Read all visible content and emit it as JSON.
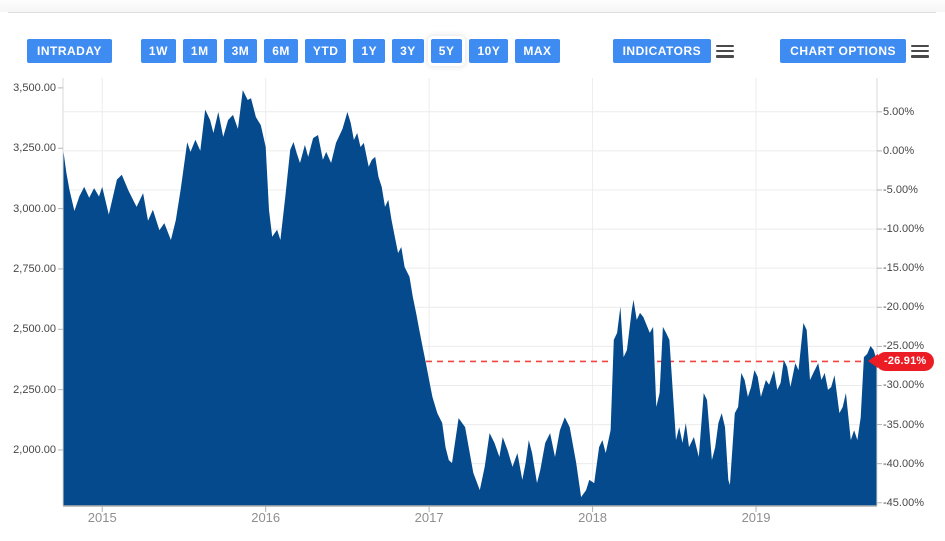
{
  "toolbar": {
    "intraday_label": "INTRADAY",
    "ranges": [
      {
        "label": "1W",
        "active": false
      },
      {
        "label": "1M",
        "active": false
      },
      {
        "label": "3M",
        "active": false
      },
      {
        "label": "6M",
        "active": false
      },
      {
        "label": "YTD",
        "active": false
      },
      {
        "label": "1Y",
        "active": false
      },
      {
        "label": "3Y",
        "active": false
      },
      {
        "label": "5Y",
        "active": true
      },
      {
        "label": "10Y",
        "active": false
      },
      {
        "label": "MAX",
        "active": false
      }
    ],
    "indicators_label": "INDICATORS",
    "chart_options_label": "CHART OPTIONS"
  },
  "colors": {
    "button_blue": "#3e8bf2",
    "area_fill": "#054a8c",
    "grid": "#ececec",
    "axis_line": "#d9d9d9",
    "bottom_axis": "#b0b0b0",
    "tick": "#b5b5b5",
    "label_dark": "#474747",
    "label_year": "#8f8f8f",
    "badge_red": "#ec1c24",
    "dashed_red": "#f2453f"
  },
  "chart_data": {
    "type": "area",
    "title": "",
    "xlabel": "",
    "ylabel": "",
    "grid": true,
    "legend": false,
    "x_axis": {
      "min": 2014.76,
      "max": 2019.74,
      "tick_values": [
        2015,
        2016,
        2017,
        2018,
        2019
      ],
      "labels": [
        "2015",
        "2016",
        "2017",
        "2018",
        "2019"
      ]
    },
    "y_axis_left": {
      "min": 1768,
      "max": 3541,
      "tick_values": [
        3500,
        3250,
        3000,
        2750,
        2500,
        2250,
        2000
      ],
      "labels": [
        "3,500.00",
        "3,250.00",
        "3,000.00",
        "2,750.00",
        "2,500.00",
        "2,250.00",
        "2,000.00"
      ]
    },
    "y_axis_right": {
      "ref_price": 3239,
      "tick_values": [
        5,
        0,
        -5,
        -10,
        -15,
        -20,
        -25,
        -30,
        -35,
        -40,
        -45
      ],
      "labels": [
        "5.00%",
        "0.00%",
        "-5.00%",
        "-10.00%",
        "-15.00%",
        "-20.00%",
        "-25.00%",
        "-30.00%",
        "-35.00%",
        "-40.00%",
        "-45.00%"
      ]
    },
    "current": {
      "price": 2367,
      "change_pct": -26.91,
      "label": "-26.91%"
    },
    "series": [
      {
        "name": "price",
        "x": [
          2014.76,
          2014.78,
          2014.8,
          2014.83,
          2014.86,
          2014.89,
          2014.92,
          2014.95,
          2014.98,
          2015.0,
          2015.04,
          2015.09,
          2015.12,
          2015.16,
          2015.21,
          2015.25,
          2015.28,
          2015.31,
          2015.35,
          2015.38,
          2015.42,
          2015.45,
          2015.48,
          2015.52,
          2015.54,
          2015.57,
          2015.6,
          2015.63,
          2015.66,
          2015.68,
          2015.71,
          2015.74,
          2015.77,
          2015.8,
          2015.83,
          2015.86,
          2015.89,
          2015.91,
          2015.94,
          2015.97,
          2016.0,
          2016.02,
          2016.04,
          2016.07,
          2016.09,
          2016.12,
          2016.15,
          2016.17,
          2016.19,
          2016.21,
          2016.24,
          2016.26,
          2016.29,
          2016.32,
          2016.35,
          2016.37,
          2016.4,
          2016.43,
          2016.47,
          2016.5,
          2016.52,
          2016.54,
          2016.56,
          2016.58,
          2016.6,
          2016.63,
          2016.65,
          2016.67,
          2016.69,
          2016.71,
          2016.73,
          2016.75,
          2016.77,
          2016.79,
          2016.81,
          2016.83,
          2016.85,
          2016.88,
          2016.9,
          2016.92,
          2016.94,
          2016.96,
          2016.98,
          2017.0,
          2017.02,
          2017.05,
          2017.08,
          2017.1,
          2017.12,
          2017.14,
          2017.18,
          2017.22,
          2017.27,
          2017.31,
          2017.34,
          2017.37,
          2017.4,
          2017.43,
          2017.45,
          2017.48,
          2017.51,
          2017.54,
          2017.57,
          2017.59,
          2017.61,
          2017.63,
          2017.66,
          2017.68,
          2017.71,
          2017.74,
          2017.77,
          2017.8,
          2017.83,
          2017.86,
          2017.9,
          2017.93,
          2017.96,
          2017.98,
          2018.01,
          2018.04,
          2018.06,
          2018.08,
          2018.11,
          2018.13,
          2018.15,
          2018.17,
          2018.19,
          2018.21,
          2018.24,
          2018.25,
          2018.27,
          2018.29,
          2018.31,
          2018.35,
          2018.37,
          2018.39,
          2018.41,
          2018.43,
          2018.45,
          2018.47,
          2018.51,
          2018.53,
          2018.55,
          2018.57,
          2018.59,
          2018.62,
          2018.65,
          2018.68,
          2018.7,
          2018.73,
          2018.75,
          2018.77,
          2018.79,
          2018.81,
          2018.83,
          2018.84,
          2018.87,
          2018.89,
          2018.91,
          2018.93,
          2018.95,
          2018.97,
          2018.99,
          2019.01,
          2019.03,
          2019.06,
          2019.08,
          2019.11,
          2019.13,
          2019.15,
          2019.17,
          2019.19,
          2019.21,
          2019.24,
          2019.26,
          2019.29,
          2019.31,
          2019.33,
          2019.35,
          2019.38,
          2019.4,
          2019.42,
          2019.44,
          2019.46,
          2019.48,
          2019.51,
          2019.53,
          2019.55,
          2019.58,
          2019.6,
          2019.62,
          2019.64,
          2019.66,
          2019.68,
          2019.7,
          2019.72,
          2019.74
        ],
        "values": [
          3250,
          3150,
          3077,
          2990,
          3050,
          3090,
          3045,
          3085,
          3050,
          3090,
          2975,
          3120,
          3140,
          3075,
          3007,
          3064,
          2950,
          2995,
          2910,
          2940,
          2870,
          2952,
          3080,
          3275,
          3235,
          3285,
          3240,
          3410,
          3367,
          3313,
          3400,
          3297,
          3367,
          3388,
          3330,
          3491,
          3450,
          3457,
          3379,
          3346,
          3255,
          2994,
          2883,
          2912,
          2870,
          3049,
          3243,
          3276,
          3230,
          3189,
          3264,
          3214,
          3292,
          3305,
          3202,
          3235,
          3189,
          3272,
          3330,
          3400,
          3355,
          3284,
          3313,
          3255,
          3272,
          3173,
          3202,
          3214,
          3131,
          3090,
          3007,
          3036,
          2953,
          2883,
          2816,
          2841,
          2758,
          2717,
          2634,
          2568,
          2497,
          2427,
          2360,
          2290,
          2220,
          2153,
          2112,
          2012,
          1958,
          1946,
          2132,
          2095,
          1905,
          1834,
          1930,
          2070,
          2029,
          1971,
          2054,
          1999,
          1930,
          1987,
          1876,
          1946,
          2041,
          1987,
          1863,
          1917,
          2029,
          2070,
          1971,
          2082,
          2136,
          2095,
          1946,
          1805,
          1834,
          1876,
          1863,
          2012,
          2041,
          1987,
          2082,
          2456,
          2485,
          2593,
          2385,
          2414,
          2580,
          2622,
          2539,
          2568,
          2551,
          2485,
          2510,
          2178,
          2236,
          2510,
          2485,
          2456,
          2041,
          2095,
          2029,
          2112,
          2012,
          2054,
          1971,
          2236,
          2207,
          1958,
          2012,
          2112,
          2153,
          2095,
          1876,
          1855,
          2153,
          2178,
          2319,
          2290,
          2220,
          2261,
          2331,
          2303,
          2220,
          2290,
          2270,
          2331,
          2249,
          2278,
          2373,
          2344,
          2261,
          2360,
          2330,
          2526,
          2497,
          2290,
          2319,
          2360,
          2290,
          2319,
          2249,
          2261,
          2310,
          2153,
          2178,
          2236,
          2041,
          2082,
          2041,
          2136,
          2385,
          2398,
          2431,
          2414,
          2366
        ]
      }
    ]
  }
}
